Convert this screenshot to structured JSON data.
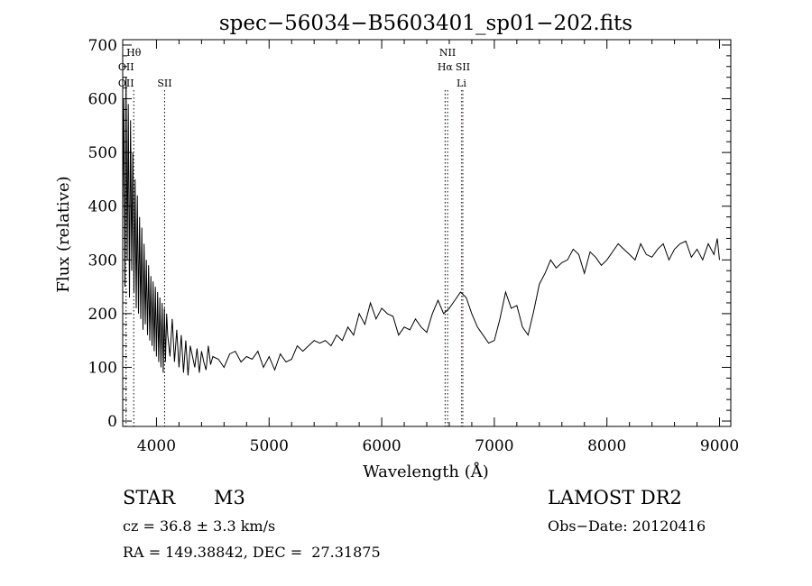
{
  "chart_data": {
    "type": "line",
    "title": "spec−56034−B5603401_sp01−202.fits",
    "xlabel": "Wavelength (Å)",
    "ylabel": "Flux (relative)",
    "xlim": [
      3700,
      9100
    ],
    "ylim": [
      -10,
      710
    ],
    "x_ticks": [
      4000,
      5000,
      6000,
      7000,
      8000,
      9000
    ],
    "y_ticks": [
      0,
      100,
      200,
      300,
      400,
      500,
      600,
      700
    ],
    "grid": false,
    "line_color": "#000000",
    "series": [
      {
        "x": [
          3700,
          3710,
          3720,
          3730,
          3740,
          3750,
          3760,
          3770,
          3780,
          3790,
          3800,
          3810,
          3820,
          3830,
          3840,
          3850,
          3860,
          3870,
          3880,
          3890,
          3900,
          3910,
          3920,
          3930,
          3940,
          3950,
          3960,
          3970,
          3980,
          3990,
          4000,
          4010,
          4020,
          4030,
          4040,
          4050,
          4060,
          4070,
          4080,
          4090,
          4100,
          4120,
          4140,
          4160,
          4180,
          4200,
          4220,
          4240,
          4260,
          4280,
          4300,
          4320,
          4340,
          4360,
          4380,
          4400,
          4420,
          4440,
          4460,
          4480,
          4500,
          4550,
          4600,
          4650,
          4700,
          4750,
          4800,
          4850,
          4900,
          4950,
          5000,
          5050,
          5100,
          5150,
          5200,
          5250,
          5300,
          5350,
          5400,
          5450,
          5500,
          5550,
          5600,
          5650,
          5700,
          5750,
          5800,
          5850,
          5900,
          5950,
          6000,
          6050,
          6100,
          6150,
          6200,
          6250,
          6300,
          6350,
          6400,
          6450,
          6500,
          6550,
          6600,
          6650,
          6700,
          6750,
          6800,
          6850,
          6900,
          6950,
          7000,
          7050,
          7100,
          7150,
          7200,
          7250,
          7300,
          7350,
          7400,
          7450,
          7500,
          7550,
          7600,
          7650,
          7700,
          7750,
          7800,
          7850,
          7900,
          7950,
          8000,
          8050,
          8100,
          8150,
          8200,
          8250,
          8300,
          8350,
          8400,
          8450,
          8500,
          8550,
          8600,
          8650,
          8700,
          8750,
          8800,
          8850,
          8900,
          8950,
          8980,
          9000
        ],
        "values": [
          380,
          600,
          250,
          640,
          300,
          590,
          230,
          560,
          280,
          500,
          240,
          450,
          210,
          420,
          200,
          380,
          190,
          360,
          170,
          330,
          180,
          300,
          160,
          290,
          150,
          270,
          140,
          260,
          130,
          250,
          120,
          240,
          110,
          230,
          100,
          220,
          90,
          210,
          110,
          200,
          160,
          120,
          190,
          110,
          170,
          100,
          160,
          90,
          150,
          85,
          140,
          120,
          100,
          135,
          90,
          130,
          110,
          95,
          140,
          105,
          120,
          115,
          100,
          125,
          130,
          110,
          120,
          115,
          130,
          100,
          120,
          95,
          125,
          110,
          115,
          140,
          130,
          140,
          150,
          145,
          150,
          140,
          160,
          150,
          175,
          160,
          200,
          180,
          220,
          190,
          210,
          200,
          195,
          160,
          175,
          170,
          190,
          175,
          165,
          200,
          225,
          200,
          210,
          225,
          240,
          230,
          200,
          175,
          160,
          145,
          150,
          190,
          240,
          210,
          215,
          175,
          160,
          205,
          255,
          275,
          300,
          285,
          295,
          300,
          320,
          310,
          275,
          315,
          305,
          290,
          300,
          315,
          330,
          320,
          310,
          300,
          330,
          310,
          305,
          320,
          330,
          300,
          320,
          330,
          335,
          305,
          320,
          300,
          330,
          310,
          340,
          300
        ]
      }
    ],
    "line_labels": [
      {
        "wavelength": 3730,
        "text": "OII",
        "row": 2,
        "color": "#000000"
      },
      {
        "wavelength": 3730,
        "text": "OII",
        "row": 1,
        "color": "#000000"
      },
      {
        "wavelength": 3798,
        "text": "Hθ",
        "row": 0,
        "color": "#000000"
      },
      {
        "wavelength": 4072,
        "text": "SII",
        "row": 2,
        "color": "#000000"
      },
      {
        "wavelength": 6563,
        "text": "Hα",
        "row": 1,
        "color": "#000000"
      },
      {
        "wavelength": 6585,
        "text": "NII",
        "row": 0,
        "color": "#000000"
      },
      {
        "wavelength": 6720,
        "text": "SII",
        "row": 1,
        "color": "#000000"
      },
      {
        "wavelength": 6708,
        "text": "Li",
        "row": 2,
        "color": "#cc0000"
      }
    ]
  },
  "info": {
    "object_class": "STAR",
    "subclass": "M3",
    "survey": "LAMOST DR2",
    "redshift": "cz = 36.8 ± 3.3 km/s",
    "obs_date": "Obs−Date: 20120416",
    "coords": "RA = 149.38842, DEC =  27.31875"
  }
}
